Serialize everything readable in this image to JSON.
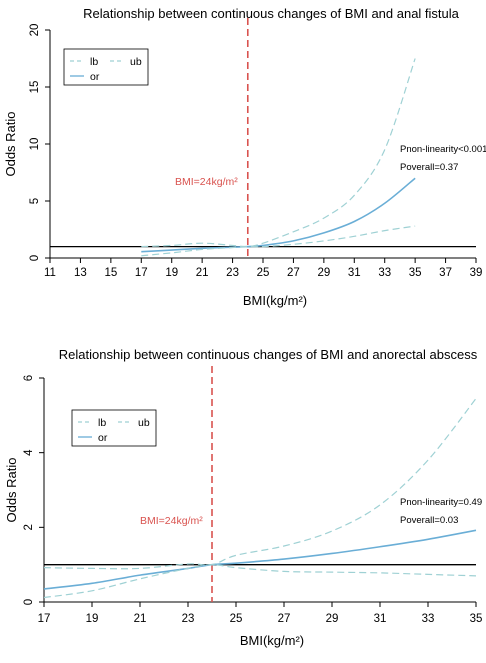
{
  "colors": {
    "or": "#6aaed6",
    "bounds": "#9fd1d4",
    "reference": "#d9534f",
    "ink": "#000000"
  },
  "chart_data": [
    {
      "type": "line",
      "title": "Relationship between continuous changes of BMI and anal fistula",
      "xlabel": "BMI(kg/m²)",
      "ylabel": "Odds Ratio",
      "xlim": [
        11,
        39
      ],
      "ylim": [
        0,
        20
      ],
      "xticks": [
        "11",
        "13",
        "15",
        "17",
        "19",
        "21",
        "23",
        "25",
        "27",
        "29",
        "31",
        "33",
        "35",
        "37",
        "39"
      ],
      "yticks": [
        "0",
        "5",
        "10",
        "15",
        "20"
      ],
      "reference_x": 24,
      "reference_label": "BMI=24kg/m²",
      "reference_y": 1,
      "legend": {
        "position": "top-left",
        "entries": [
          "lb",
          "ub",
          "or"
        ]
      },
      "annotations": [
        "Pnon-linearity<0.001",
        "Poverall=0.37"
      ],
      "series": [
        {
          "name": "or",
          "style": "solid",
          "x": [
            17,
            19,
            21,
            23,
            24,
            25,
            27,
            29,
            31,
            33,
            35
          ],
          "values": [
            0.55,
            0.7,
            0.85,
            0.95,
            1.0,
            1.1,
            1.5,
            2.2,
            3.2,
            4.8,
            7.0
          ]
        },
        {
          "name": "lb",
          "style": "dashed",
          "x": [
            17,
            19,
            21,
            23,
            24,
            25,
            27,
            29,
            31,
            33,
            35
          ],
          "values": [
            0.2,
            0.45,
            0.75,
            0.92,
            1.0,
            1.0,
            1.2,
            1.5,
            1.9,
            2.4,
            2.8
          ]
        },
        {
          "name": "ub",
          "style": "dashed",
          "x": [
            17,
            19,
            21,
            23,
            24,
            25,
            27,
            29,
            31,
            33,
            35
          ],
          "values": [
            1.0,
            1.1,
            1.3,
            1.1,
            1.0,
            1.3,
            2.3,
            3.5,
            5.5,
            9.5,
            17.5
          ]
        }
      ]
    },
    {
      "type": "line",
      "title": "Relationship between continuous changes of BMI and anorectal abscess",
      "xlabel": "BMI(kg/m²)",
      "ylabel": "Odds Ratio",
      "xlim": [
        17,
        35
      ],
      "ylim": [
        0,
        6
      ],
      "xticks": [
        "17",
        "19",
        "21",
        "23",
        "25",
        "27",
        "29",
        "31",
        "33",
        "35"
      ],
      "yticks": [
        "0",
        "2",
        "4",
        "6"
      ],
      "reference_x": 24,
      "reference_label": "BMI=24kg/m²",
      "reference_y": 1,
      "legend": {
        "position": "top-left",
        "entries": [
          "lb",
          "ub",
          "or"
        ]
      },
      "annotations": [
        "Pnon-linearity=0.49",
        "Poverall=0.03"
      ],
      "series": [
        {
          "name": "or",
          "style": "solid",
          "x": [
            17,
            19,
            21,
            23,
            24,
            25,
            27,
            29,
            31,
            33,
            35
          ],
          "values": [
            0.35,
            0.5,
            0.72,
            0.9,
            1.0,
            1.04,
            1.15,
            1.3,
            1.48,
            1.68,
            1.92
          ]
        },
        {
          "name": "lb",
          "style": "dashed",
          "x": [
            17,
            19,
            21,
            23,
            24,
            25,
            27,
            29,
            31,
            33,
            35
          ],
          "values": [
            0.12,
            0.3,
            0.62,
            0.9,
            1.0,
            0.92,
            0.82,
            0.8,
            0.78,
            0.74,
            0.7
          ]
        },
        {
          "name": "ub",
          "style": "dashed",
          "x": [
            17,
            19,
            21,
            23,
            24,
            25,
            27,
            29,
            31,
            33,
            35
          ],
          "values": [
            0.92,
            0.9,
            0.9,
            1.02,
            1.0,
            1.25,
            1.5,
            1.9,
            2.6,
            3.8,
            5.45
          ]
        }
      ]
    }
  ]
}
